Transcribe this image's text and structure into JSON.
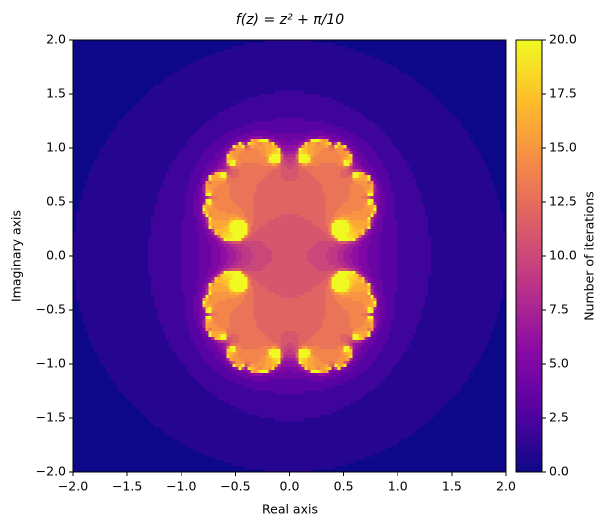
{
  "chart_data": {
    "type": "heatmap",
    "title": "f(z) = z² + π/10",
    "xlabel": "Real axis",
    "ylabel": "Imaginary axis",
    "colorbar_label": "Number of iterations",
    "colormap": "plasma",
    "xlim": [
      -2,
      2
    ],
    "ylim": [
      -2,
      2
    ],
    "clim": [
      0,
      20
    ],
    "xticks": [
      {
        "value": -2,
        "label": "−2.0"
      },
      {
        "value": -1.5,
        "label": "−1.5"
      },
      {
        "value": -1,
        "label": "−1.0"
      },
      {
        "value": -0.5,
        "label": "−0.5"
      },
      {
        "value": 0,
        "label": "0.0"
      },
      {
        "value": 0.5,
        "label": "0.5"
      },
      {
        "value": 1,
        "label": "1.0"
      },
      {
        "value": 1.5,
        "label": "1.5"
      },
      {
        "value": 2,
        "label": "2.0"
      }
    ],
    "yticks": [
      {
        "value": -2,
        "label": "−2.0"
      },
      {
        "value": -1.5,
        "label": "−1.5"
      },
      {
        "value": -1,
        "label": "−1.0"
      },
      {
        "value": -0.5,
        "label": "−0.5"
      },
      {
        "value": 0,
        "label": "0.0"
      },
      {
        "value": 0.5,
        "label": "0.5"
      },
      {
        "value": 1,
        "label": "1.0"
      },
      {
        "value": 1.5,
        "label": "1.5"
      },
      {
        "value": 2,
        "label": "2.0"
      }
    ],
    "cticks": [
      {
        "value": 0,
        "label": "0.0"
      },
      {
        "value": 2.5,
        "label": "2.5"
      },
      {
        "value": 5,
        "label": "5.0"
      },
      {
        "value": 7.5,
        "label": "7.5"
      },
      {
        "value": 10,
        "label": "10.0"
      },
      {
        "value": 12.5,
        "label": "12.5"
      },
      {
        "value": 15,
        "label": "15.0"
      },
      {
        "value": 17.5,
        "label": "17.5"
      },
      {
        "value": 20,
        "label": "20.0"
      }
    ]
  }
}
